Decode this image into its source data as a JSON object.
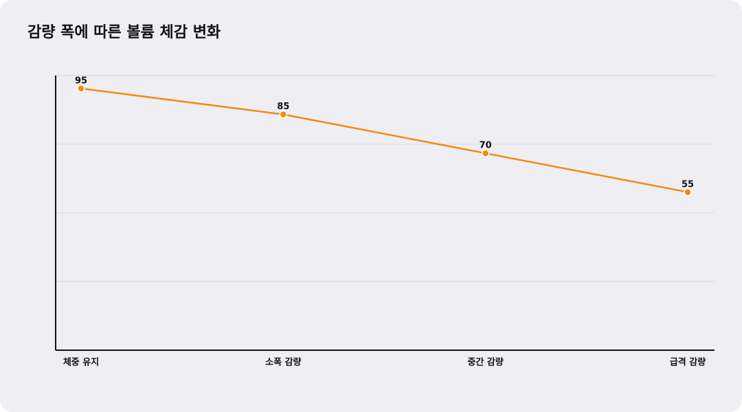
{
  "chart_data": {
    "type": "line",
    "title": "감량 폭에 따른 볼륨 체감 변화",
    "categories": [
      "체중 유지",
      "소폭 감량",
      "중간 감량",
      "급격 감량"
    ],
    "values": [
      95,
      85,
      70,
      55
    ],
    "color": "#f28a0f",
    "ylim": [
      -6,
      100
    ],
    "grid": true
  }
}
